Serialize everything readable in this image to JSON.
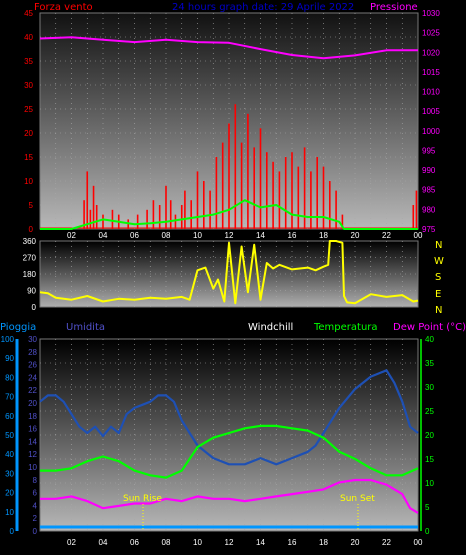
{
  "header": {
    "left_label": "Forza vento",
    "center_label": "24 hours graph date:  29 Aprile 2022",
    "right_label": "Pressione"
  },
  "bottom_header": {
    "pioggia": "Pioggia",
    "umidita": "Umidita",
    "windchill": "Windchill",
    "temperatura": "Temperatura",
    "dewpoint": "Dew Point (°C)"
  },
  "direction_labels": [
    "N",
    "W",
    "S",
    "E",
    "N"
  ],
  "hour_labels": [
    "02",
    "04",
    "06",
    "08",
    "10",
    "12",
    "14",
    "16",
    "18",
    "20",
    "22",
    "00"
  ],
  "annotations": {
    "sunrise": "Sun Rise",
    "sunset": "Sun Set"
  },
  "colors": {
    "wind": "#ff0000",
    "gust": "#00ff00",
    "pressure": "#ff00ff",
    "direction": "#ffff00",
    "humidity": "#1e50b4",
    "temperature": "#00ff00",
    "dewpoint": "#ff00ff",
    "rain": "#0096ff",
    "left_axis": "#ff0000",
    "pioggia_axis": "#0096ff",
    "umidita_axis": "#5050c8"
  },
  "chart_data": [
    {
      "type": "line",
      "x_unit": "hour",
      "xlim": [
        0,
        24
      ],
      "left_axis": {
        "ticks": [
          "0",
          "5",
          "10",
          "15",
          "20",
          "25",
          "30",
          "35",
          "40",
          "45"
        ],
        "ylim": [
          0,
          45
        ]
      },
      "right_axis": {
        "ticks": [
          "975",
          "980",
          "985",
          "990",
          "995",
          "1000",
          "1005",
          "1010",
          "1015",
          "1020",
          "1025",
          "1030"
        ],
        "ylim": [
          975,
          1030
        ]
      },
      "series": [
        {
          "key": "pressure",
          "axis": "right",
          "x": [
            0,
            2,
            4,
            6,
            8,
            10,
            12,
            14,
            16,
            18,
            20,
            22,
            24
          ],
          "y": [
            1023.5,
            1023.8,
            1023.2,
            1022.6,
            1023.2,
            1022.6,
            1022.4,
            1020.8,
            1019.3,
            1018.5,
            1019.2,
            1020.5,
            1020.5
          ]
        },
        {
          "key": "wind",
          "axis": "left",
          "style": "bars",
          "x": [
            2.8,
            3.0,
            3.2,
            3.4,
            3.6,
            4.0,
            4.6,
            5.0,
            5.6,
            6.2,
            6.8,
            7.2,
            7.6,
            8.0,
            8.3,
            8.6,
            9.0,
            9.2,
            9.6,
            10.0,
            10.4,
            10.8,
            11.2,
            11.6,
            12.0,
            12.4,
            12.8,
            13.2,
            13.6,
            14.0,
            14.4,
            14.8,
            15.2,
            15.6,
            16.0,
            16.4,
            16.8,
            17.2,
            17.6,
            18.0,
            18.4,
            18.8,
            19.2,
            23.7,
            23.9
          ],
          "y": [
            6,
            12,
            4,
            9,
            5,
            3,
            4,
            3,
            2,
            3,
            4,
            6,
            5,
            9,
            6,
            3,
            5,
            8,
            6,
            12,
            10,
            8,
            15,
            18,
            22,
            26,
            18,
            24,
            17,
            21,
            16,
            14,
            12,
            15,
            16,
            13,
            17,
            12,
            15,
            13,
            10,
            8,
            3,
            5,
            8
          ]
        },
        {
          "key": "gust",
          "axis": "left",
          "x": [
            0,
            2,
            3,
            4,
            5,
            6,
            7,
            8,
            9,
            10,
            11,
            12,
            13,
            14,
            15,
            16,
            17,
            18,
            19,
            19.3,
            20,
            24
          ],
          "y": [
            0,
            0,
            1,
            2,
            1.5,
            1,
            1.2,
            1.5,
            2,
            2.5,
            3,
            4,
            6,
            4.5,
            5,
            3,
            2.5,
            2.5,
            1.5,
            0,
            0,
            0
          ]
        }
      ]
    },
    {
      "type": "line",
      "x_unit": "hour",
      "xlim": [
        0,
        24
      ],
      "left_axis": {
        "ticks": [
          "0",
          "90",
          "180",
          "270",
          "360"
        ],
        "ylim": [
          0,
          360
        ]
      },
      "series": [
        {
          "key": "direction",
          "axis": "left",
          "x": [
            0,
            0.5,
            1,
            2,
            3,
            4,
            5,
            6,
            7,
            8,
            9,
            9.5,
            10,
            10.5,
            11,
            11.3,
            11.7,
            12,
            12.4,
            12.8,
            13.2,
            13.6,
            14,
            14.4,
            14.8,
            15.2,
            16,
            17,
            17.5,
            18,
            18.3,
            18.4,
            18.8,
            19.2,
            19.3,
            19.5,
            20,
            21,
            22,
            23,
            23.7,
            24
          ],
          "y": [
            80,
            75,
            50,
            40,
            60,
            30,
            45,
            40,
            50,
            45,
            55,
            40,
            200,
            215,
            100,
            150,
            30,
            350,
            20,
            330,
            80,
            340,
            40,
            240,
            210,
            230,
            205,
            215,
            200,
            220,
            230,
            360,
            360,
            350,
            60,
            25,
            20,
            70,
            55,
            65,
            30,
            35
          ]
        }
      ]
    },
    {
      "type": "line",
      "x_unit": "hour",
      "xlim": [
        0,
        24
      ],
      "left_axis": {
        "label": "Pioggia",
        "ticks": [
          "0",
          "10",
          "20",
          "30",
          "40",
          "50",
          "60",
          "70",
          "80",
          "90",
          "100"
        ],
        "ylim": [
          0,
          100
        ]
      },
      "left_axis_2": {
        "label": "Umidita",
        "ticks": [
          "0",
          "2",
          "4",
          "6",
          "8",
          "10",
          "12",
          "14",
          "16",
          "18",
          "20",
          "22",
          "24",
          "26",
          "28",
          "30"
        ],
        "ylim": [
          0,
          30
        ]
      },
      "right_axis": {
        "label": "°C",
        "ticks": [
          "0",
          "5",
          "10",
          "15",
          "20",
          "25",
          "30",
          "35",
          "40"
        ],
        "ylim": [
          0,
          40
        ]
      },
      "series": [
        {
          "key": "humidity",
          "axis": "left_axis_2",
          "x": [
            0,
            0.5,
            1,
            1.5,
            2,
            2.5,
            3,
            3.5,
            4,
            4.5,
            5,
            5.5,
            6,
            6.5,
            7,
            7.5,
            8,
            8.5,
            9,
            9.5,
            10,
            11,
            12,
            13,
            14,
            15,
            16,
            17,
            17.5,
            18,
            19,
            20,
            21,
            21.5,
            22,
            22.5,
            23,
            23.5,
            24
          ],
          "y": [
            20,
            21,
            21,
            20,
            18,
            16,
            15,
            16,
            14.5,
            16,
            15,
            18,
            19,
            19.5,
            20,
            21,
            21,
            20,
            17,
            15,
            13,
            11,
            10,
            10,
            11,
            10,
            11,
            12,
            13,
            15,
            19,
            22,
            24,
            24.5,
            25,
            23,
            20,
            16,
            15
          ]
        },
        {
          "key": "temperature",
          "axis": "right",
          "x": [
            0,
            1,
            2,
            3,
            4,
            5,
            6,
            7,
            8,
            9,
            10,
            11,
            12,
            13,
            14,
            15,
            16,
            17,
            18,
            19,
            20,
            21,
            22,
            23,
            24
          ],
          "y": [
            12,
            12,
            12.5,
            14,
            15,
            14,
            12,
            11,
            10.5,
            12,
            17,
            19,
            20,
            21,
            21.5,
            21.5,
            21,
            20.5,
            19,
            16,
            14.5,
            12.5,
            11,
            11,
            12.5
          ]
        },
        {
          "key": "dewpoint",
          "axis": "right",
          "x": [
            0,
            1,
            2,
            3,
            4,
            5,
            6,
            7,
            8,
            9,
            10,
            11,
            12,
            13,
            14,
            15,
            16,
            17,
            18,
            19,
            20,
            21,
            22,
            23,
            23.5,
            24
          ],
          "y": [
            6,
            6,
            6.5,
            5.5,
            4,
            4.5,
            5,
            5,
            6,
            5.5,
            6.5,
            6,
            6,
            5.5,
            6,
            6.5,
            7,
            7.5,
            8,
            9.5,
            10,
            10,
            9,
            7,
            4,
            3
          ]
        },
        {
          "key": "rain",
          "axis": "left",
          "x": [
            0,
            24
          ],
          "y": [
            0,
            0
          ]
        }
      ]
    }
  ]
}
